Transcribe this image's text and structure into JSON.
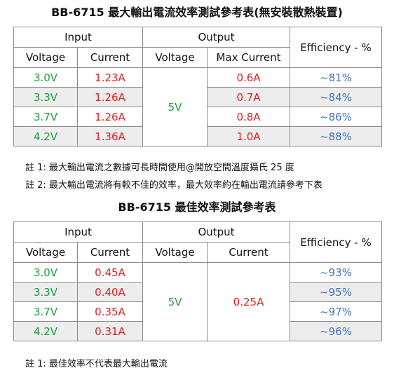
{
  "table1": {
    "title": "BB-6715  最大輸出電流效率測試參考表(無安裝散熱裝置)",
    "group_input": "Input",
    "group_output": "Output",
    "efficiency_header": "Efficiency - %",
    "col_in_voltage": "Voltage",
    "col_in_current": "Current",
    "col_out_voltage": "Voltage",
    "col_out_current": "Max Current",
    "output_voltage": "5V",
    "rows": [
      {
        "in_voltage": "3.0V",
        "in_current": "1.23A",
        "out_current": "0.6A",
        "efficiency": "~81%"
      },
      {
        "in_voltage": "3.3V",
        "in_current": "1.26A",
        "out_current": "0.7A",
        "efficiency": "~84%"
      },
      {
        "in_voltage": "3.7V",
        "in_current": "1.26A",
        "out_current": "0.8A",
        "efficiency": "~86%"
      },
      {
        "in_voltage": "4.2V",
        "in_current": "1.36A",
        "out_current": "1.0A",
        "efficiency": "~88%"
      }
    ],
    "notes": [
      "註 1:  最大輸出電流之數據可長時間使用@開放空間溫度攝氏 25 度",
      "註 2:  最大輸出電流將有較不佳的效率，最大效率約在輸出電流請參考下表"
    ]
  },
  "table2": {
    "title": "BB-6715  最佳效率測試參考表",
    "group_input": "Input",
    "group_output": "Output",
    "efficiency_header": "Efficiency - %",
    "col_in_voltage": "Voltage",
    "col_in_current": "Current",
    "col_out_voltage": "Voltage",
    "col_out_current": "Current",
    "output_voltage": "5V",
    "output_current": "0.25A",
    "rows": [
      {
        "in_voltage": "3.0V",
        "in_current": "0.45A",
        "efficiency": "~93%"
      },
      {
        "in_voltage": "3.3V",
        "in_current": "0.40A",
        "efficiency": "~95%"
      },
      {
        "in_voltage": "3.7V",
        "in_current": "0.35A",
        "efficiency": "~97%"
      },
      {
        "in_voltage": "4.2V",
        "in_current": "0.31A",
        "efficiency": "~96%"
      }
    ],
    "notes": [
      "註 1:  最佳效率不代表最大輸出電流"
    ]
  },
  "colors": {
    "voltage": "#1a9e3a",
    "current": "#e01e1e",
    "efficiency": "#3f74c0",
    "row_shade": "#ededed",
    "border": "#8c8c8c"
  }
}
